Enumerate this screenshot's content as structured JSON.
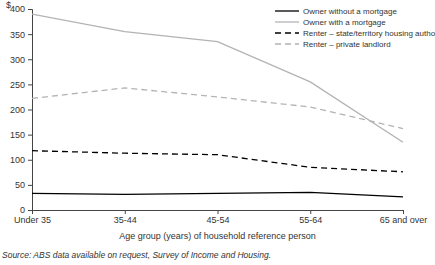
{
  "chart_data": {
    "type": "line",
    "y_label": "$",
    "x_label": "Age group (years) of household reference person",
    "annotations": [
      "Source: ABS data available on request, Survey of Income and Housing."
    ],
    "categories": [
      "Under 35",
      "35-44",
      "45-54",
      "55-64",
      "65 and over"
    ],
    "series": [
      {
        "name": "Owner without a mortgage",
        "color": "#000000",
        "line_style": "solid",
        "values": [
          33,
          31,
          33,
          35,
          26
        ]
      },
      {
        "name": "Owner with a mortgage",
        "color": "#b3b3b3",
        "line_style": "solid",
        "values": [
          390,
          355,
          335,
          255,
          135
        ]
      },
      {
        "name": "Renter – state/territory housing authority",
        "color": "#000000",
        "line_style": "dashed",
        "values": [
          118,
          113,
          110,
          85,
          76
        ]
      },
      {
        "name": "Renter – private landlord",
        "color": "#b3b3b3",
        "line_style": "dashed",
        "values": [
          222,
          243,
          225,
          205,
          162
        ]
      }
    ],
    "ylim": [
      0,
      400
    ],
    "yticks": [
      0,
      50,
      100,
      150,
      200,
      250,
      300,
      350,
      400
    ],
    "grid": false,
    "legend": "upper right"
  }
}
